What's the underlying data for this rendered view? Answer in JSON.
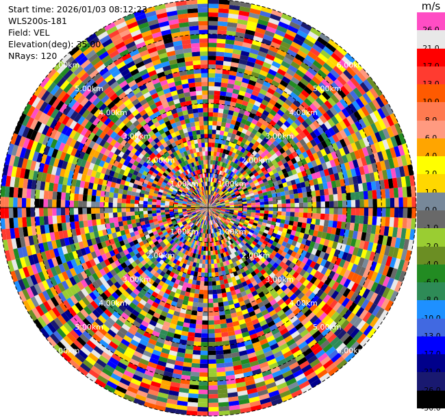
{
  "header": {
    "start_time": "Start time: 2026/01/03 08:12:23",
    "instrument": "WLS200s-181",
    "field": "Field: VEL",
    "elevation": "Elevation(deg): 35.00",
    "nrays": "NRays: 120"
  },
  "chart_data": {
    "type": "heatmap",
    "projection": "polar-ppi",
    "field": "VEL",
    "unit": "m/s",
    "n_rays": 120,
    "range_rings_km": [
      1,
      2,
      3,
      4,
      5,
      6
    ],
    "ring_labels": [
      "1.00km",
      "2.00km",
      "3.00km",
      "4.00km",
      "5.00km",
      "6.00km"
    ],
    "grid": true,
    "colorbar": {
      "placement": "right",
      "levels": [
        {
          "label": "26.0",
          "color": "#ff4dc4"
        },
        {
          "label": "21.0",
          "color": "#e8e8e8"
        },
        {
          "label": "17.0",
          "color": "#ff0000"
        },
        {
          "label": "13.0",
          "color": "#ff3b30"
        },
        {
          "label": "10.0",
          "color": "#ff5a00"
        },
        {
          "label": "8.0",
          "color": "#ff7a50"
        },
        {
          "label": "6.0",
          "color": "#ff9a80"
        },
        {
          "label": "4.0",
          "color": "#ffa500"
        },
        {
          "label": "2.0",
          "color": "#ffff00"
        },
        {
          "label": "1.0",
          "color": "#ffd700"
        },
        {
          "label": "0.0",
          "color": "#778899"
        },
        {
          "label": "-1.0",
          "color": "#696969"
        },
        {
          "label": "-2.0",
          "color": "#9acd32"
        },
        {
          "label": "-4.0",
          "color": "#6b8e23"
        },
        {
          "label": "-6.0",
          "color": "#228b22"
        },
        {
          "label": "-8.0",
          "color": "#2e8b57"
        },
        {
          "label": "-10.0",
          "color": "#1e90ff"
        },
        {
          "label": "-13.0",
          "color": "#4169e1"
        },
        {
          "label": "-17.0",
          "color": "#0000ff"
        },
        {
          "label": "-21.0",
          "color": "#00008b"
        },
        {
          "label": "-26.0",
          "color": "#191970"
        },
        {
          "label": "-30.0",
          "color": "#000000"
        }
      ]
    }
  }
}
